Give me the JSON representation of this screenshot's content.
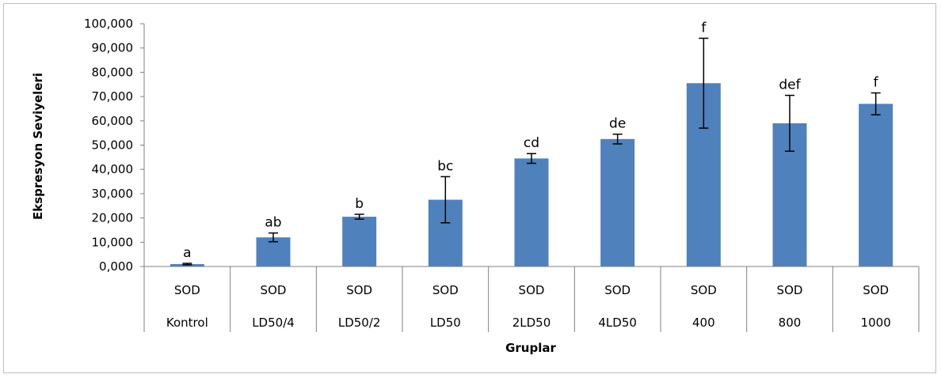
{
  "chart_data": {
    "type": "bar",
    "title": "",
    "xlabel": "Gruplar",
    "ylabel": "Ekspresyon Seviyeleri",
    "ylim": [
      0,
      100
    ],
    "yticks": [
      "0,000",
      "10,000",
      "20,000",
      "30,000",
      "40,000",
      "50,000",
      "60,000",
      "70,000",
      "80,000",
      "90,000",
      "100,000"
    ],
    "gene_row": [
      "SOD",
      "SOD",
      "SOD",
      "SOD",
      "SOD",
      "SOD",
      "SOD",
      "SOD",
      "SOD"
    ],
    "categories": [
      "Kontrol",
      "LD50/4",
      "LD50/2",
      "LD50",
      "2LD50",
      "4LD50",
      "400",
      "800",
      "1000"
    ],
    "values": [
      1.0,
      12.0,
      20.5,
      27.5,
      44.5,
      52.5,
      75.5,
      59.0,
      67.0
    ],
    "error_bars": [
      0.3,
      1.8,
      1.0,
      9.5,
      2.0,
      2.0,
      18.5,
      11.5,
      4.5
    ],
    "significance": [
      "a",
      "ab",
      "b",
      "bc",
      "cd",
      "de",
      "f",
      "def",
      "f"
    ],
    "bar_color": "#4f81bd",
    "grid": false,
    "legend": "none"
  }
}
